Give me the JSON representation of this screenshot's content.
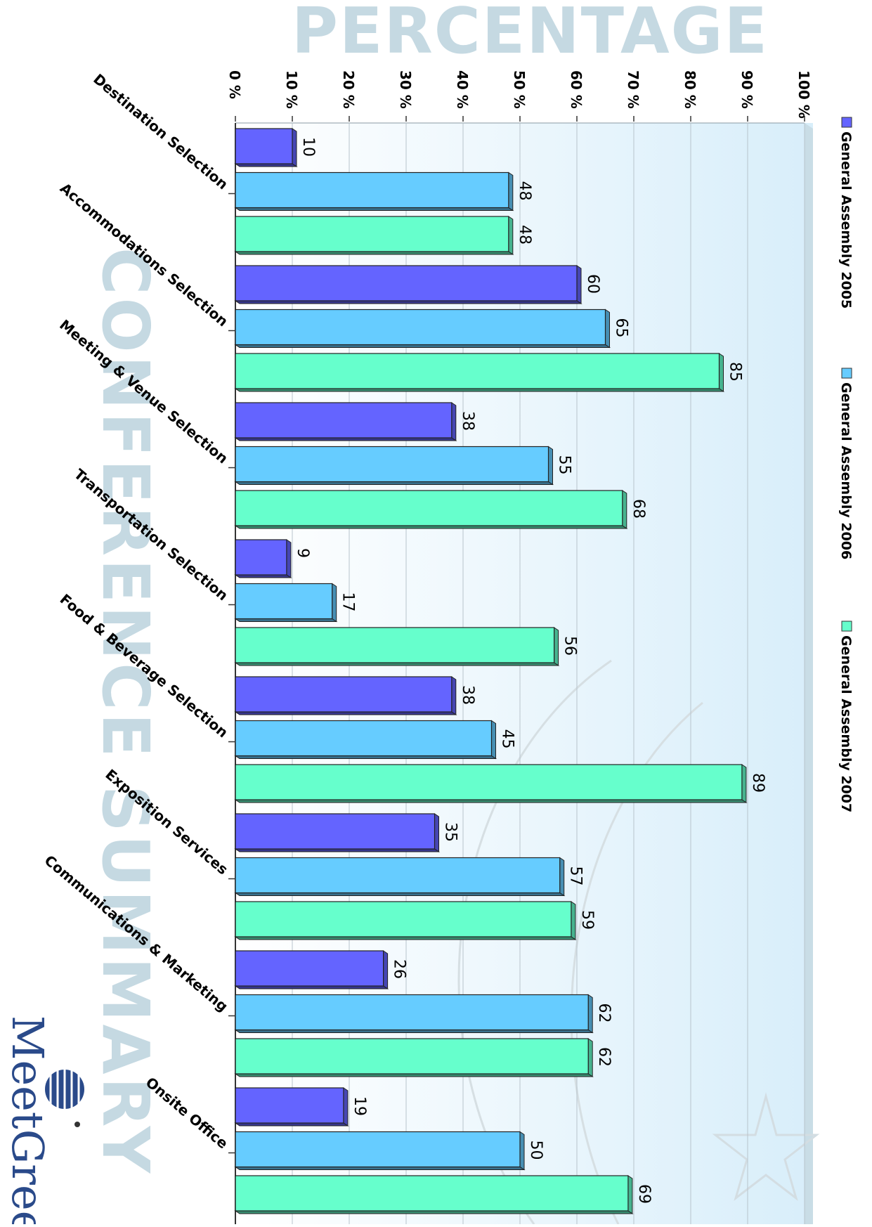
{
  "page": {
    "background": "#ffffff"
  },
  "header_title": "PERCENTAGE",
  "watermark_text": "CONFERENCE SUMMARY",
  "logo_text": "MeetGreen",
  "colors": {
    "title": "#c5d9e2",
    "watermark": "#c5d9e2",
    "plot_bg_light": "#ffffff",
    "plot_bg_dark": "#d8eefa",
    "gridline": "#b8c4cc",
    "logo_blue": "#2a4a8a",
    "logo_green": "#2e8b3f"
  },
  "chart_data": {
    "type": "bar",
    "orientation": "horizontal",
    "categories": [
      "Destination Selection",
      "Accommodations Selection",
      "Meeting & Venue Selection",
      "Transportation Selection",
      "Food & Beverage Selection",
      "Exposition Services",
      "Communications & Marketing",
      "Onsite Office"
    ],
    "series": [
      {
        "name": "General Assembly 2005",
        "color": "#6464ff",
        "values": [
          10,
          60,
          38,
          9,
          38,
          35,
          26,
          19
        ]
      },
      {
        "name": "General Assembly 2006",
        "color": "#66ccff",
        "values": [
          48,
          65,
          55,
          17,
          45,
          57,
          62,
          50
        ]
      },
      {
        "name": "General Assembly 2007",
        "color": "#66ffcc",
        "values": [
          48,
          85,
          68,
          56,
          89,
          59,
          62,
          69
        ]
      }
    ],
    "value_axis": {
      "min": 0,
      "max": 100,
      "step": 10,
      "tick_labels": [
        "0 %",
        "10 %",
        "20 %",
        "30 %",
        "40 %",
        "50 %",
        "60 %",
        "70 %",
        "80 %",
        "90 %",
        "100 %"
      ]
    },
    "data_labels": true,
    "grid": true,
    "legend_position": "right"
  }
}
